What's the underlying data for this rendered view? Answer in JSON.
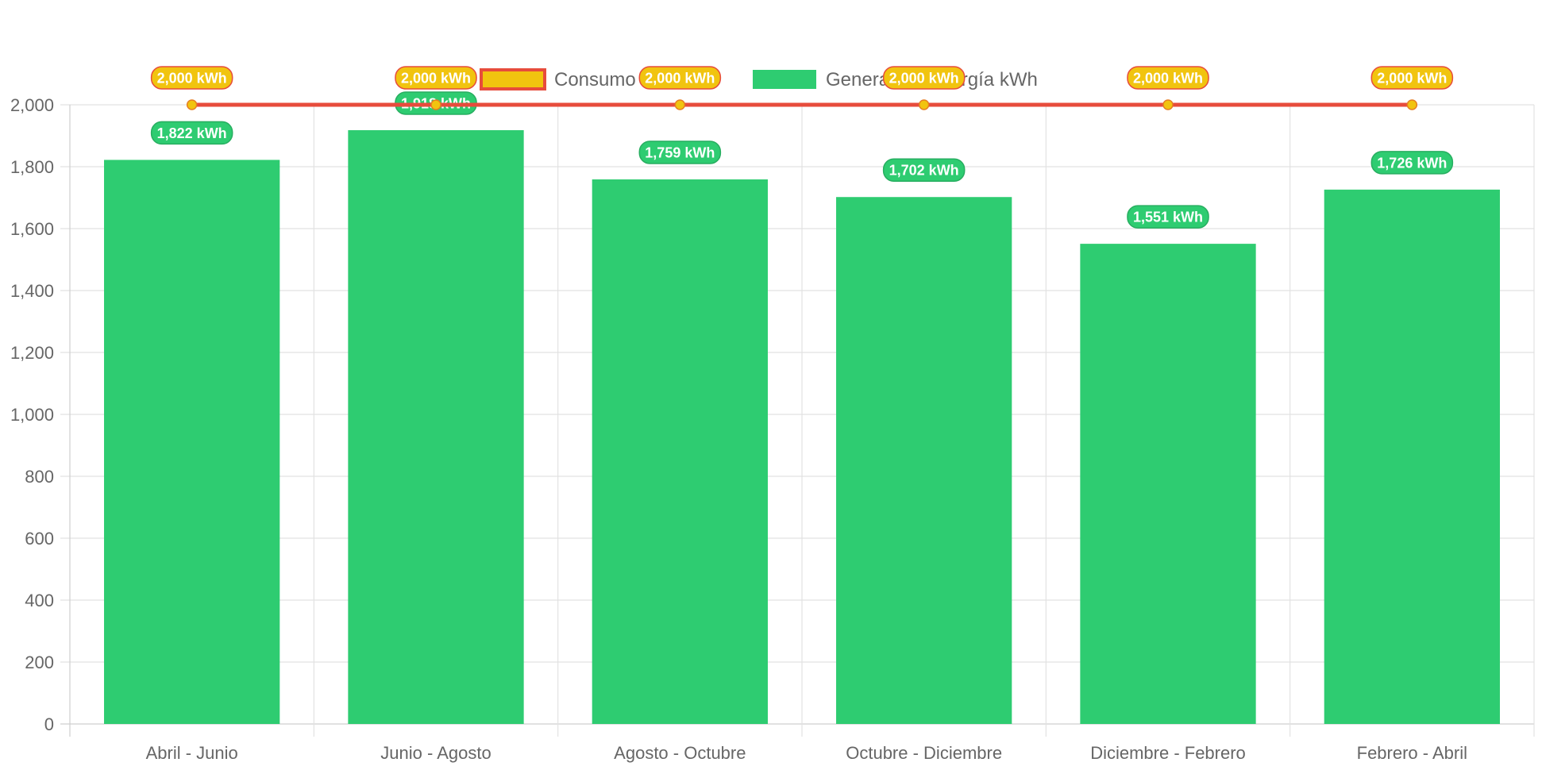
{
  "chart_data": {
    "type": "bar",
    "categories": [
      "Abril - Junio",
      "Junio - Agosto",
      "Agosto - Octubre",
      "Octubre - Diciembre",
      "Diciembre - Febrero",
      "Febrero - Abril"
    ],
    "series": [
      {
        "name": "Consumo kWh",
        "kind": "line",
        "values": [
          2000,
          2000,
          2000,
          2000,
          2000,
          2000
        ],
        "labels": [
          "2,000 kWh",
          "2,000 kWh",
          "2,000 kWh",
          "2,000 kWh",
          "2,000 kWh",
          "2,000 kWh"
        ],
        "color": "#e74c3c",
        "fill": "#f1c40f"
      },
      {
        "name": "Generación energía kWh",
        "kind": "bar",
        "values": [
          1822,
          1918,
          1759,
          1702,
          1551,
          1726
        ],
        "labels": [
          "1,822 kWh",
          "1,918 kWh",
          "1,759 kWh",
          "1,702 kWh",
          "1,551 kWh",
          "1,726 kWh"
        ],
        "color": "#2ecc71",
        "border": "#27ae60"
      }
    ],
    "yticks": [
      "0",
      "200",
      "400",
      "600",
      "800",
      "1,000",
      "1,200",
      "1,400",
      "1,600",
      "1,800",
      "2,000"
    ],
    "ylim": [
      0,
      2000
    ],
    "grid": true,
    "legend": "top-center"
  }
}
